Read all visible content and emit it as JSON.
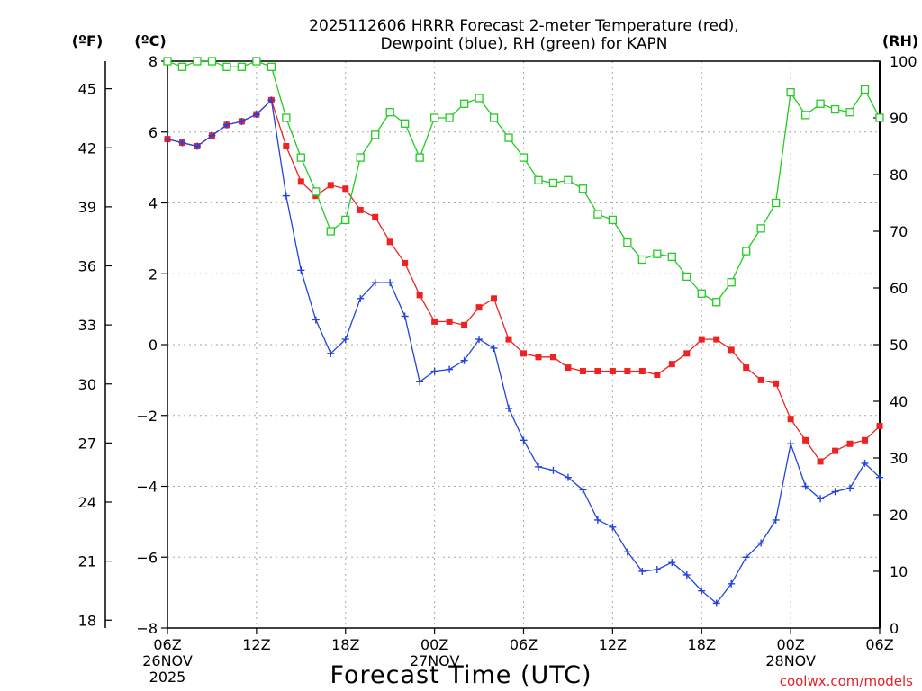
{
  "chart_data": {
    "type": "line",
    "title_lines": [
      "2025112606 HRRR Forecast 2-meter Temperature (red),",
      "Dewpoint (blue), RH (green) for KAPN"
    ],
    "unit_labels": {
      "fahrenheit": "(ºF)",
      "celsius": "(ºC)",
      "rh": "(RH)"
    },
    "xlabel": "Forecast Time (UTC)",
    "credit": "coolwx.com/models",
    "x_unit": "forecast hour",
    "xlim": [
      0,
      48
    ],
    "x_ticks": [
      {
        "x": 0,
        "lines": [
          "06Z",
          "26NOV",
          "2025"
        ]
      },
      {
        "x": 6,
        "lines": [
          "12Z"
        ]
      },
      {
        "x": 12,
        "lines": [
          "18Z"
        ]
      },
      {
        "x": 18,
        "lines": [
          "00Z",
          "27NOV"
        ]
      },
      {
        "x": 24,
        "lines": [
          "06Z"
        ]
      },
      {
        "x": 30,
        "lines": [
          "12Z"
        ]
      },
      {
        "x": 36,
        "lines": [
          "18Z"
        ]
      },
      {
        "x": 42,
        "lines": [
          "00Z",
          "28NOV"
        ]
      },
      {
        "x": 48,
        "lines": [
          "06Z"
        ]
      }
    ],
    "y_celsius": {
      "lim": [
        -8,
        8
      ],
      "ticks": [
        -8,
        -6,
        -4,
        -2,
        0,
        2,
        4,
        6,
        8
      ],
      "tick_labels": [
        "−8",
        "−6",
        "−4",
        "−2",
        "0",
        "2",
        "4",
        "6",
        "8"
      ]
    },
    "y_fahrenheit": {
      "ticks": [
        18,
        21,
        24,
        27,
        30,
        33,
        36,
        39,
        42,
        45
      ]
    },
    "y_rh": {
      "lim": [
        0,
        100
      ],
      "ticks": [
        0,
        10,
        20,
        30,
        40,
        50,
        60,
        70,
        80,
        90,
        100
      ]
    },
    "grid": true,
    "series": [
      {
        "name": "Temperature",
        "unit": "C",
        "color": "#ee2222",
        "marker": "filled-square",
        "values": [
          5.8,
          5.7,
          5.6,
          5.9,
          6.2,
          6.3,
          6.5,
          6.9,
          5.6,
          4.6,
          4.2,
          4.5,
          4.4,
          3.8,
          3.6,
          2.9,
          2.3,
          1.4,
          0.65,
          0.65,
          0.55,
          1.05,
          1.3,
          0.15,
          -0.25,
          -0.35,
          -0.35,
          -0.65,
          -0.75,
          -0.75,
          -0.75,
          -0.75,
          -0.75,
          -0.85,
          -0.55,
          -0.25,
          0.15,
          0.15,
          -0.15,
          -0.65,
          -1.0,
          -1.1,
          -2.1,
          -2.7,
          -3.3,
          -3.0,
          -2.8,
          -2.7,
          -2.3
        ]
      },
      {
        "name": "Dewpoint",
        "unit": "C",
        "color": "#2244dd",
        "marker": "plus",
        "values": [
          5.8,
          5.7,
          5.6,
          5.9,
          6.2,
          6.3,
          6.5,
          6.9,
          4.2,
          2.1,
          0.7,
          -0.25,
          0.15,
          1.3,
          1.75,
          1.75,
          0.8,
          -1.05,
          -0.75,
          -0.7,
          -0.45,
          0.15,
          -0.1,
          -1.8,
          -2.7,
          -3.45,
          -3.55,
          -3.75,
          -4.1,
          -4.95,
          -5.15,
          -5.85,
          -6.4,
          -6.35,
          -6.15,
          -6.5,
          -6.95,
          -7.3,
          -6.75,
          -6.0,
          -5.6,
          -4.95,
          -2.8,
          -4.0,
          -4.35,
          -4.15,
          -4.05,
          -3.35,
          -3.75
        ]
      },
      {
        "name": "Relative Humidity",
        "unit": "%",
        "color": "#22cc22",
        "marker": "open-square",
        "values": [
          100,
          99,
          100,
          100,
          99,
          99,
          100,
          99,
          90,
          83,
          77,
          70,
          72,
          83,
          87,
          91,
          89,
          83,
          90,
          90,
          92.5,
          93.5,
          90,
          86.5,
          83,
          79,
          78.5,
          79,
          77.5,
          73,
          72,
          68,
          65,
          66,
          65.5,
          62,
          59,
          57.5,
          61,
          66.5,
          70.5,
          75,
          94.5,
          90.5,
          92.5,
          91.5,
          91,
          95,
          90
        ]
      }
    ]
  }
}
